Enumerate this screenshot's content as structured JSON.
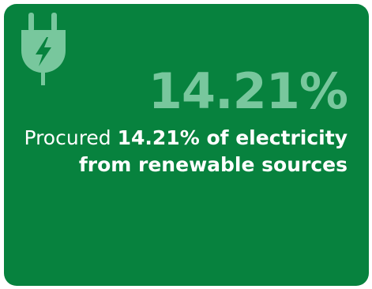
{
  "stat": {
    "value": "14.21%",
    "caption_lead": "Procured ",
    "caption_highlight": "14.21% of electricity from renewable sources"
  },
  "icon": "plug-lightning-icon",
  "colors": {
    "card_background": "#07823e",
    "stat_accent": "#78c79d",
    "text": "#ffffff"
  }
}
